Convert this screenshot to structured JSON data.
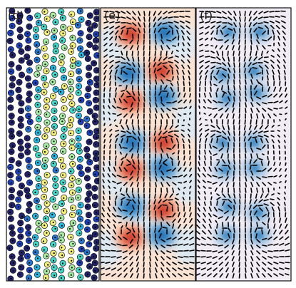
{
  "figure": {
    "panels": [
      {
        "label": "(d)",
        "kind": "particles"
      },
      {
        "label": "(e)",
        "kind": "field-diverging"
      },
      {
        "label": "(f)",
        "kind": "field-sequential"
      }
    ]
  },
  "colors": {
    "frame": "#111111",
    "background": "#ffffff",
    "particle_palette": [
      "#22226a",
      "#1b3fb5",
      "#2476d0",
      "#28b5df",
      "#42d7c8",
      "#a6eca2",
      "#f2f07b"
    ],
    "diverging_low": "#1f6fb5",
    "diverging_mid_low": "#7fb5de",
    "diverging_pale_low": "#dbe9f4",
    "diverging_pale_high": "#fbe3d4",
    "diverging_mid_high": "#f0a081",
    "diverging_high": "#cf3b2c",
    "sequential_bg": "#f1ecf4",
    "sequential_light": "#b9cfe6",
    "sequential_mid": "#6ea7d3",
    "sequential_dark": "#1f6fb5",
    "arrow": "#000000"
  }
}
